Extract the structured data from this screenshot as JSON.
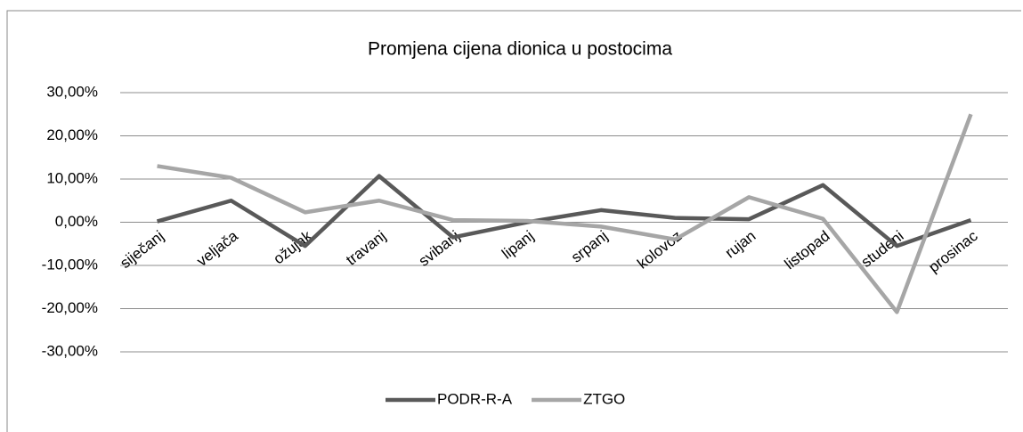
{
  "chart_data": {
    "type": "line",
    "title": "Promjena cijena dionica u postocima",
    "categories": [
      "siječanj",
      "veljača",
      "ožujak",
      "travanj",
      "svibanj",
      "lipanj",
      "srpanj",
      "kolovoz",
      "rujan",
      "listopad",
      "studeni",
      "prosinac"
    ],
    "series": [
      {
        "name": "PODR-R-A",
        "color": "#595959",
        "values": [
          0.2,
          5,
          -5.5,
          10.7,
          -3.5,
          0,
          2.8,
          1,
          0.7,
          8.6,
          -5.5,
          0.5
        ]
      },
      {
        "name": "ZTGO",
        "color": "#a6a6a6",
        "values": [
          13,
          10.3,
          2.3,
          5,
          0.5,
          0.3,
          -1,
          -4,
          5.8,
          0.8,
          -20.8,
          25
        ]
      }
    ],
    "ylim": [
      -30,
      30
    ],
    "yticks": [
      {
        "value": -30,
        "label": "-30,00%"
      },
      {
        "value": -20,
        "label": "-20,00%"
      },
      {
        "value": -10,
        "label": "-10,00%"
      },
      {
        "value": 0,
        "label": "0,00%"
      },
      {
        "value": 10,
        "label": "10,00%"
      },
      {
        "value": 20,
        "label": "20,00%"
      },
      {
        "value": 30,
        "label": "30,00%"
      }
    ],
    "grid": true,
    "legend": "bottom"
  }
}
